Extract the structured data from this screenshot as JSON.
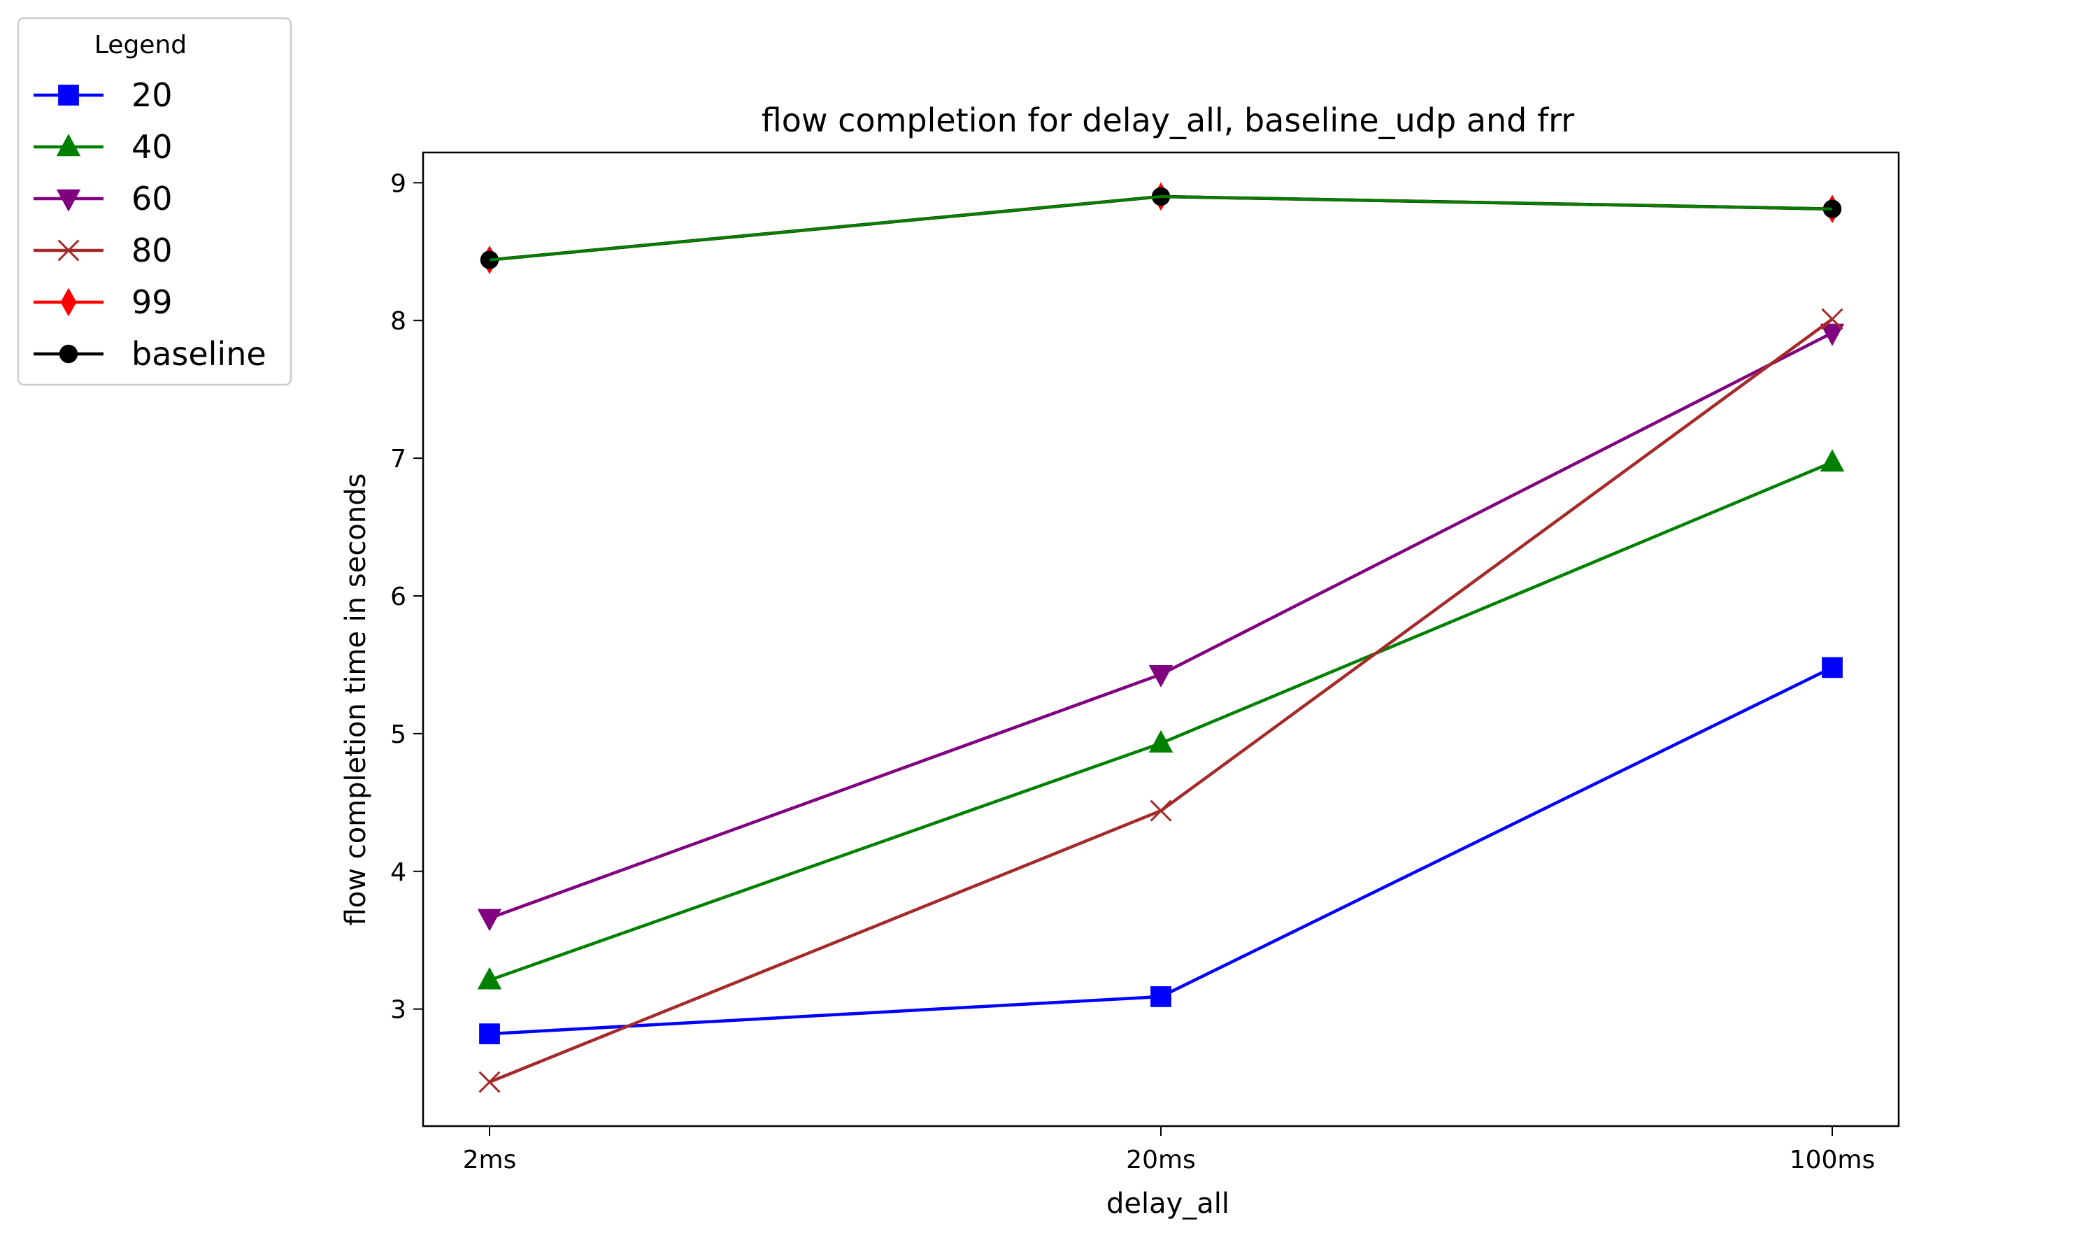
{
  "chart_data": {
    "type": "line",
    "title": "flow completion for delay_all, baseline_udp and frr",
    "xlabel": "delay_all",
    "ylabel": "flow completion time in seconds",
    "categories": [
      "2ms",
      "20ms",
      "100ms"
    ],
    "ylim": [
      2.15,
      9.22
    ],
    "yticks": [
      3,
      4,
      5,
      6,
      7,
      8,
      9
    ],
    "grid": false,
    "legend": {
      "title": "Legend",
      "placement": "upper-left, outside plot area"
    },
    "series": [
      {
        "name": "20",
        "color": "#0000ff",
        "marker": "square",
        "values": [
          2.82,
          3.09,
          5.48
        ]
      },
      {
        "name": "40",
        "color": "#008000",
        "marker": "triangle-up",
        "values": [
          3.21,
          4.93,
          6.97
        ]
      },
      {
        "name": "60",
        "color": "#800080",
        "marker": "triangle-down",
        "values": [
          3.66,
          5.43,
          7.91
        ]
      },
      {
        "name": "80",
        "color": "#a52a2a",
        "marker": "x",
        "values": [
          2.47,
          4.44,
          8.01
        ]
      },
      {
        "name": "99",
        "color": "#ff0000",
        "marker": "thin-diamond",
        "values": [
          8.44,
          8.9,
          8.81
        ]
      },
      {
        "name": "baseline",
        "color": "#000000",
        "marker": "circle",
        "values": [
          8.44,
          8.9,
          8.81
        ]
      }
    ],
    "overlay_note_color": "#008000"
  }
}
